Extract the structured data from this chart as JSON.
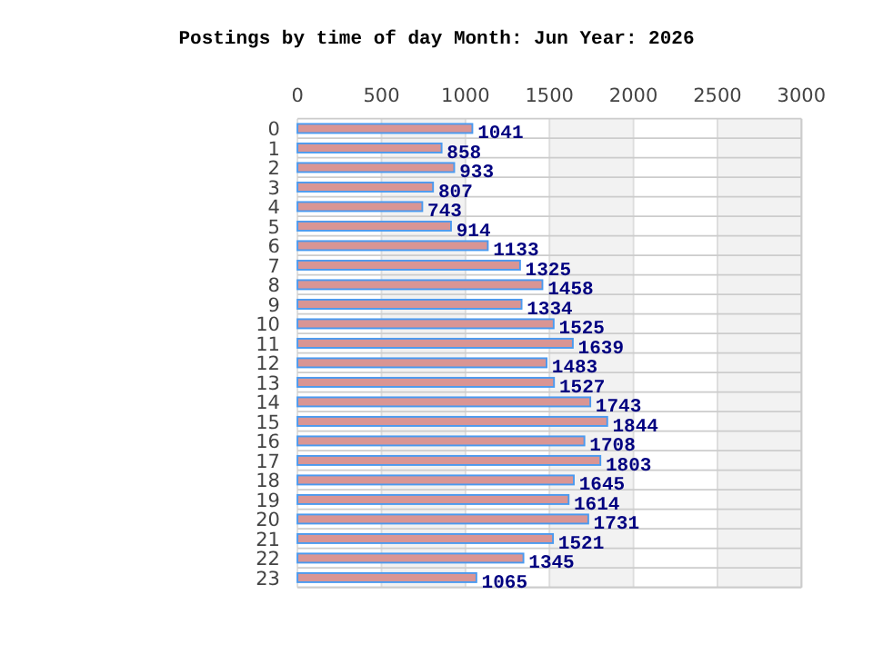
{
  "chart_data": {
    "type": "bar",
    "orientation": "horizontal",
    "title": "Postings by time of day Month: Jun   Year: 2026",
    "categories": [
      "0",
      "1",
      "2",
      "3",
      "4",
      "5",
      "6",
      "7",
      "8",
      "9",
      "10",
      "11",
      "12",
      "13",
      "14",
      "15",
      "16",
      "17",
      "18",
      "19",
      "20",
      "21",
      "22",
      "23"
    ],
    "values": [
      1041,
      858,
      933,
      807,
      743,
      914,
      1133,
      1325,
      1458,
      1334,
      1525,
      1639,
      1483,
      1527,
      1743,
      1844,
      1708,
      1803,
      1645,
      1614,
      1731,
      1521,
      1345,
      1065
    ],
    "color": "#d99594",
    "xlim": [
      0,
      3000
    ],
    "xticks": [
      0,
      500,
      1000,
      1500,
      2000,
      2500,
      3000
    ],
    "grid": true,
    "data_labels": true
  }
}
